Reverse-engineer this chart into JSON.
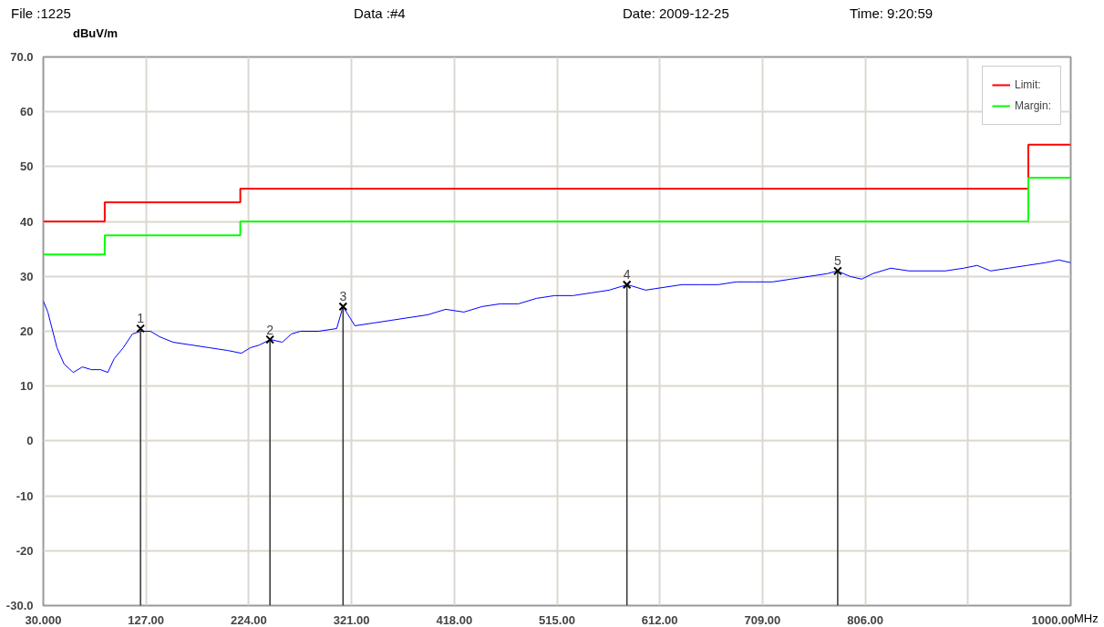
{
  "chart_data": {
    "type": "line",
    "xlabel": "MHz",
    "ylabel": "dBuV/m",
    "annotations": [
      "File :1225",
      "Data :#4",
      "Date: 2009-12-25",
      "Time: 9:20:59",
      {
        "text": "1",
        "x": 121.8,
        "y": 20.5
      },
      {
        "text": "2",
        "x": 244,
        "y": 18.5
      },
      {
        "text": "3",
        "x": 313,
        "y": 24.5
      },
      {
        "text": "4",
        "x": 581,
        "y": 28.5
      },
      {
        "text": "5",
        "x": 780,
        "y": 31
      }
    ],
    "xlim": [
      30,
      1000
    ],
    "ylim": [
      -30,
      70
    ],
    "xticks": [
      {
        "value": 30,
        "label": "30.000"
      },
      {
        "value": 127,
        "label": "127.00"
      },
      {
        "value": 224,
        "label": "224.00"
      },
      {
        "value": 321,
        "label": "321.00"
      },
      {
        "value": 418,
        "label": "418.00"
      },
      {
        "value": 515,
        "label": "515.00"
      },
      {
        "value": 612,
        "label": "612.00"
      },
      {
        "value": 709,
        "label": "709.00"
      },
      {
        "value": 806,
        "label": "806.00"
      },
      {
        "value": 903,
        "label": null
      },
      {
        "value": 1000,
        "label": "1000.00"
      }
    ],
    "yticks": [
      {
        "value": -30,
        "label": "-30.0"
      },
      -20,
      -10,
      0,
      10,
      20,
      30,
      40,
      50,
      60,
      {
        "value": 70,
        "label": "70.0"
      }
    ],
    "grid": true,
    "legend": "top right",
    "series": [
      {
        "name": "Limit:",
        "type": "step",
        "color": "#ff0000",
        "x": [
          30,
          88,
          216,
          960,
          1000
        ],
        "values": [
          40,
          43.5,
          46,
          54,
          54
        ]
      },
      {
        "name": "Margin:",
        "type": "step",
        "color": "#00ff00",
        "x": [
          30,
          88,
          216,
          960,
          1000
        ],
        "values": [
          34,
          37.5,
          40,
          48,
          48
        ]
      },
      {
        "color": "#0000ff",
        "x": [
          30,
          34.3,
          42.9,
          49.7,
          58.3,
          66.9,
          75.5,
          84.1,
          90.9,
          96.9,
          105.5,
          114.1,
          121.8,
          131.2,
          139.8,
          152.6,
          169.8,
          186.9,
          204.1,
          217,
          225.5,
          234.1,
          244.4,
          255.6,
          264.2,
          272.7,
          289.9,
          307,
          313,
          324.2,
          341.3,
          358.5,
          375.6,
          392.8,
          409.9,
          427.1,
          444.2,
          461.4,
          478.5,
          495.7,
          512.8,
          530,
          547.1,
          564.3,
          581.4,
          598.6,
          615.7,
          632.9,
          650,
          667.2,
          684.3,
          701.5,
          718.6,
          735.8,
          752.9,
          770.1,
          779.6,
          791.6,
          802.7,
          813,
          830.1,
          847.3,
          864.4,
          881.6,
          898.7,
          911.6,
          924.5,
          941.6,
          958.8,
          975.9,
          988.8,
          1000
        ],
        "values": [
          25.5,
          23.5,
          17,
          14,
          12.5,
          13.5,
          13,
          13,
          12.5,
          15,
          17,
          19.5,
          20,
          20,
          19,
          18,
          17.5,
          17,
          16.5,
          16,
          17,
          17.5,
          18.5,
          18,
          19.5,
          20,
          20,
          20.5,
          24.5,
          21,
          21.5,
          22,
          22.5,
          23,
          24,
          23.5,
          24.5,
          25,
          25,
          26,
          26.5,
          26.5,
          27,
          27.5,
          28.5,
          27.5,
          28,
          28.5,
          28.5,
          28.5,
          29,
          29,
          29,
          29.5,
          30,
          30.5,
          31,
          30,
          29.5,
          30.5,
          31.5,
          31,
          31,
          31,
          31.5,
          32,
          31,
          31.5,
          32,
          32.5,
          33,
          32.5
        ]
      },
      {
        "type": "lollipop",
        "color": "#000000",
        "marker": "cross",
        "x": [
          121.8,
          244,
          313,
          581,
          780
        ],
        "values": [
          20.5,
          18.5,
          24.5,
          28.5,
          31
        ]
      }
    ]
  }
}
